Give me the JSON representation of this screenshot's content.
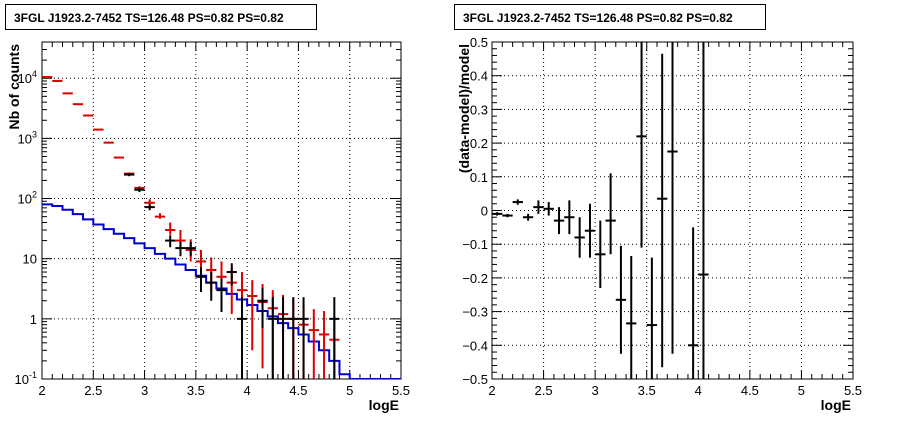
{
  "chart_data": [
    {
      "type": "line",
      "title": "3FGL J1923.2-7452 TS=126.48 PS=0.82 PS=0.82",
      "xlabel": "logE",
      "ylabel": "Nb of counts",
      "xlim": [
        2,
        5.5
      ],
      "ylim": [
        0.1,
        40000
      ],
      "yscale": "log",
      "grid": true,
      "x_ticks": [
        2,
        2.5,
        3,
        3.5,
        4,
        4.5,
        5,
        5.5
      ],
      "x_tick_labels": [
        "2",
        "2.5",
        "3",
        "3.5",
        "4",
        "4.5",
        "5",
        "5.5"
      ],
      "y_ticks": [
        0.1,
        1,
        10,
        100,
        1000,
        10000
      ],
      "y_tick_labels": [
        "10^-1",
        "1",
        "10",
        "10^2",
        "10^3",
        "10^4"
      ],
      "bin_width": 0.1,
      "series": [
        {
          "kind": "step",
          "color": "#0000cc",
          "x": [
            2.0,
            2.1,
            2.2,
            2.3,
            2.4,
            2.5,
            2.6,
            2.7,
            2.8,
            2.9,
            3.0,
            3.1,
            3.2,
            3.3,
            3.4,
            3.5,
            3.6,
            3.7,
            3.8,
            3.9,
            4.0,
            4.1,
            4.2,
            4.3,
            4.4,
            4.5,
            4.6,
            4.7,
            4.8,
            4.9,
            5.0,
            5.1,
            5.2,
            5.3,
            5.4
          ],
          "values": [
            80,
            75,
            65,
            55,
            45,
            37,
            31,
            26,
            22,
            18,
            15,
            12,
            10,
            8,
            6.5,
            5.2,
            4,
            3.2,
            2.6,
            2.1,
            1.7,
            1.35,
            1.1,
            0.85,
            0.7,
            0.55,
            0.42,
            0.3,
            0.2,
            0.12,
            0.1,
            0.1,
            0.1,
            0.1,
            0.1
          ]
        },
        {
          "kind": "errorbar",
          "color": "#dd0000",
          "x": [
            2.05,
            2.15,
            2.25,
            2.35,
            2.45,
            2.55,
            2.65,
            2.75,
            2.85,
            2.95,
            3.05,
            3.15,
            3.25,
            3.35,
            3.45,
            3.55,
            3.65,
            3.75,
            3.85,
            3.95,
            4.05,
            4.15,
            4.25,
            4.35,
            4.45,
            4.55,
            4.65,
            4.75,
            4.85
          ],
          "values": [
            10500,
            9000,
            5600,
            3700,
            2400,
            1400,
            850,
            480,
            260,
            150,
            85,
            50,
            30,
            20,
            14,
            9,
            6.5,
            5,
            4,
            3,
            2.4,
            1.9,
            1.5,
            1.2,
            1,
            0.8,
            0.65,
            0.55,
            0.45
          ],
          "err_low": [
            0,
            0,
            0,
            0,
            0,
            0,
            0,
            0,
            10,
            8,
            8,
            4,
            5,
            6,
            5,
            4.5,
            3.7,
            3.1,
            2.8,
            2.4,
            2.1,
            1.75,
            1.44,
            1.16,
            0.98,
            0.8,
            0.65,
            0.55,
            0.45
          ],
          "err_high": [
            0,
            0,
            0,
            0,
            0,
            0,
            0,
            0,
            10,
            10,
            12,
            7,
            10,
            10,
            7,
            5,
            4,
            4,
            3,
            3,
            2,
            1.9,
            1.5,
            1.3,
            1.1,
            0.9,
            0.8,
            0.8,
            0.65
          ]
        },
        {
          "kind": "errorbar",
          "color": "#000000",
          "x": [
            2.85,
            2.95,
            3.05,
            3.25,
            3.35,
            3.45,
            3.55,
            3.65,
            3.75,
            3.85,
            3.95,
            4.15,
            4.25,
            4.35,
            4.45,
            4.55,
            4.85
          ],
          "values": [
            250,
            140,
            72,
            20,
            15,
            15,
            5,
            4,
            3,
            6,
            1,
            2,
            1,
            1,
            1,
            1,
            1
          ],
          "err_low": [
            15,
            12,
            8,
            4.5,
            4,
            4,
            2.2,
            2,
            1.7,
            2.4,
            0.95,
            1.3,
            0.95,
            0.95,
            0.95,
            0.95,
            0.95
          ],
          "err_high": [
            15,
            12,
            8,
            4.5,
            4,
            4,
            2.2,
            2,
            1.7,
            2.4,
            1.3,
            1.3,
            1.3,
            1.3,
            1.3,
            1.3,
            1.3
          ]
        }
      ]
    },
    {
      "type": "scatter",
      "title": "3FGL J1923.2-7452 TS=126.48 PS=0.82 PS=0.82",
      "xlabel": "logE",
      "ylabel": "(data-model)/model",
      "xlim": [
        2,
        5.5
      ],
      "ylim": [
        -0.5,
        0.5
      ],
      "grid": true,
      "x_ticks": [
        2,
        2.5,
        3,
        3.5,
        4,
        4.5,
        5,
        5.5
      ],
      "x_tick_labels": [
        "2",
        "2.5",
        "3",
        "3.5",
        "4",
        "4.5",
        "5",
        "5.5"
      ],
      "y_ticks": [
        -0.5,
        -0.4,
        -0.3,
        -0.2,
        -0.1,
        0,
        0.1,
        0.2,
        0.3,
        0.4,
        0.5
      ],
      "y_tick_labels": [
        "−0.5",
        "−0.4",
        "−0.3",
        "−0.2",
        "−0.1",
        "0",
        "0.1",
        "0.2",
        "0.3",
        "0.4",
        "0.5"
      ],
      "bin_width": 0.1,
      "series": [
        {
          "kind": "errorbar",
          "color": "#000000",
          "x": [
            2.05,
            2.15,
            2.25,
            2.35,
            2.45,
            2.55,
            2.65,
            2.75,
            2.85,
            2.95,
            3.05,
            3.15,
            3.25,
            3.35,
            3.45,
            3.55,
            3.65,
            3.75,
            3.95,
            4.05
          ],
          "values": [
            -0.01,
            -0.015,
            0.025,
            -0.02,
            0.01,
            0.005,
            -0.03,
            -0.02,
            -0.08,
            -0.06,
            -0.13,
            -0.03,
            -0.265,
            -0.335,
            0.22,
            -0.34,
            0.035,
            0.175,
            -0.4,
            -0.19
          ],
          "err_low": [
            0.005,
            0.005,
            0.008,
            0.01,
            0.02,
            0.02,
            0.04,
            0.05,
            0.06,
            0.08,
            0.1,
            0.1,
            0.16,
            0.2,
            0.33,
            0.3,
            0.5,
            0.6,
            0.3,
            0.4
          ],
          "err_high": [
            0.005,
            0.005,
            0.008,
            0.01,
            0.02,
            0.02,
            0.04,
            0.05,
            0.06,
            0.08,
            0.1,
            0.14,
            0.16,
            0.2,
            0.28,
            0.2,
            0.43,
            0.33,
            0.35,
            0.7
          ]
        }
      ]
    }
  ]
}
